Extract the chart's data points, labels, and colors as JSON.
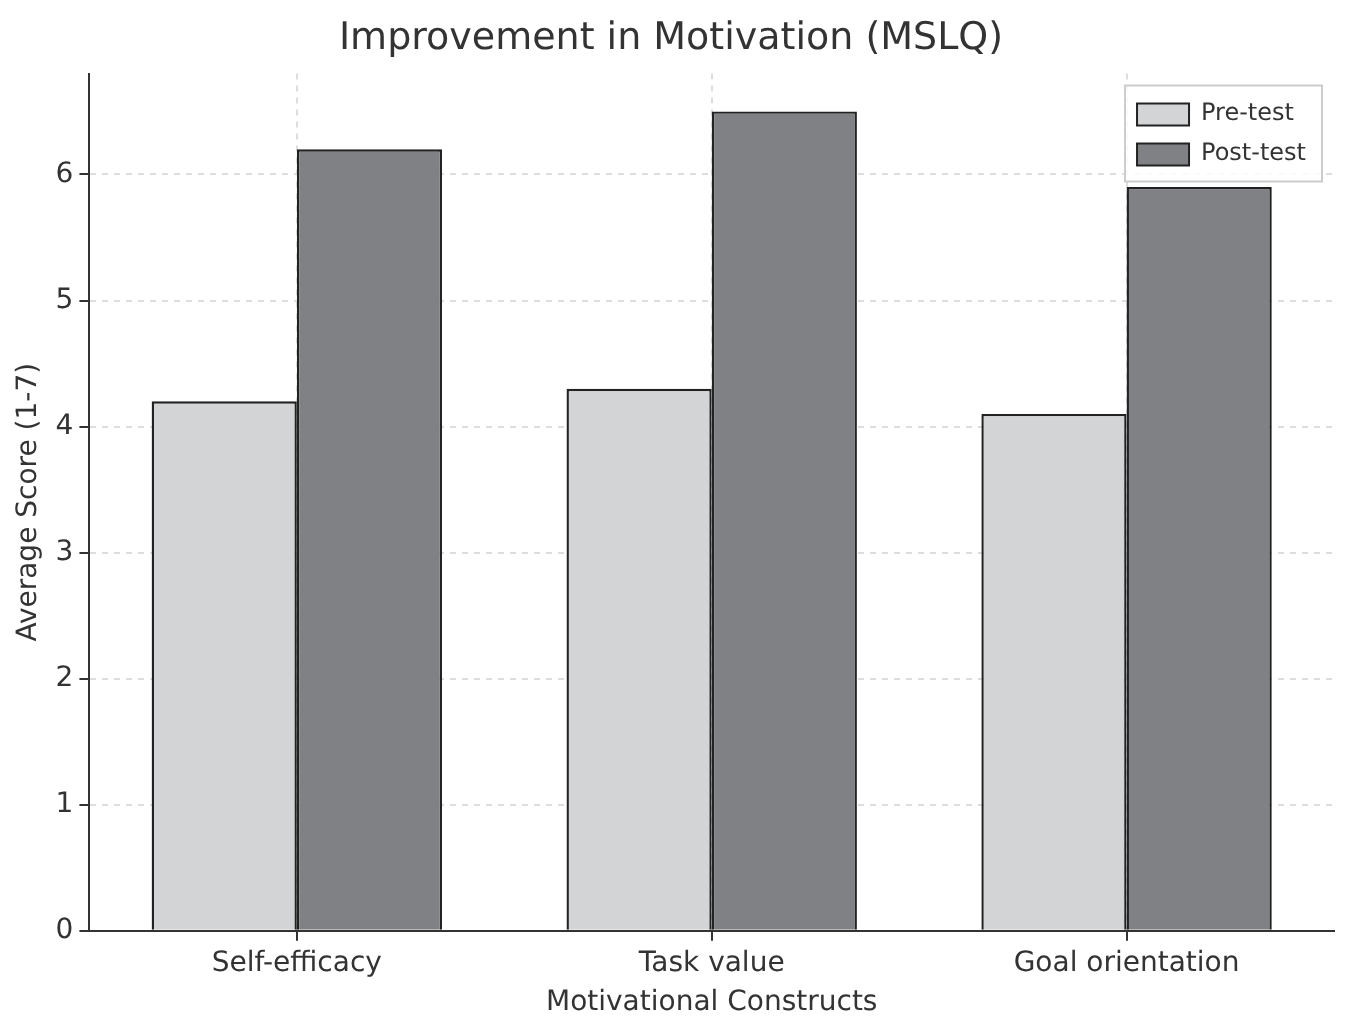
{
  "chart_data": {
    "type": "bar",
    "title": "Improvement in Motivation (MSLQ)",
    "xlabel": "Motivational Constructs",
    "ylabel": "Average Score (1-7)",
    "categories": [
      "Self-efficacy",
      "Task value",
      "Goal orientation"
    ],
    "series": [
      {
        "name": "Pre-test",
        "color": "#d3d4d6",
        "values": [
          4.2,
          4.3,
          4.1
        ]
      },
      {
        "name": "Post-test",
        "color": "#808185",
        "values": [
          6.2,
          6.5,
          5.9
        ]
      }
    ],
    "ylim": [
      0,
      6.8
    ],
    "yticks": [
      0,
      1,
      2,
      3,
      4,
      5,
      6
    ],
    "grid": true,
    "legend": "top right"
  }
}
